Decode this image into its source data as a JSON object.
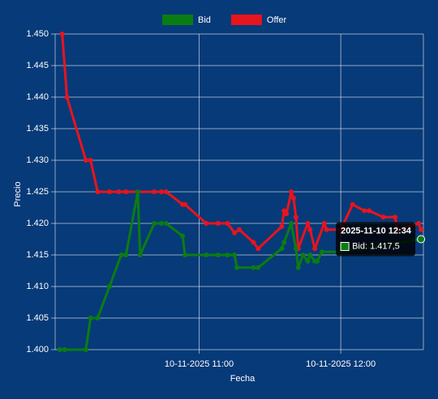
{
  "chart_data": {
    "type": "line",
    "x_label": "Fecha",
    "y_label": "Precio",
    "xlim": [
      "10-11-2025 09:59",
      "10-11-2025 12:35"
    ],
    "xticks": [
      "10-11-2025 11:00",
      "10-11-2025 12:00"
    ],
    "ylim": [
      1.4,
      1.45
    ],
    "yticks": [
      {
        "value": 1.4,
        "label": "1.400"
      },
      1.405,
      {
        "value": 1.41,
        "label": "1.410"
      },
      1.415,
      {
        "value": 1.42,
        "label": "1.420"
      },
      1.425,
      {
        "value": 1.43,
        "label": "1.430"
      },
      1.435,
      {
        "value": 1.44,
        "label": "1.440"
      },
      1.445,
      {
        "value": 1.45,
        "label": "1.450"
      }
    ],
    "grid": true,
    "legend": "top",
    "series": [
      {
        "name": "Bid",
        "color": "#0a7d12",
        "x": [
          "10-11-2025 10:01",
          "10-11-2025 10:03",
          "10-11-2025 10:12",
          "10-11-2025 10:14",
          "10-11-2025 10:17",
          "10-11-2025 10:22",
          "10-11-2025 10:27",
          "10-11-2025 10:29",
          "10-11-2025 10:34",
          "10-11-2025 10:35",
          "10-11-2025 10:41",
          "10-11-2025 10:44",
          "10-11-2025 10:46",
          "10-11-2025 10:53",
          "10-11-2025 10:54",
          "10-11-2025 11:03",
          "10-11-2025 11:08",
          "10-11-2025 11:12",
          "10-11-2025 11:15",
          "10-11-2025 11:16",
          "10-11-2025 11:23",
          "10-11-2025 11:25",
          "10-11-2025 11:35",
          "10-11-2025 11:36",
          "10-11-2025 11:39",
          "10-11-2025 11:41",
          "10-11-2025 11:42",
          "10-11-2025 11:44",
          "10-11-2025 11:46",
          "10-11-2025 11:47",
          "10-11-2025 11:49",
          "10-11-2025 11:50",
          "10-11-2025 11:52",
          "10-11-2025 12:00",
          "10-11-2025 12:34"
        ],
        "values": [
          1.4,
          1.4,
          1.4,
          1.405,
          1.405,
          1.41,
          1.415,
          1.415,
          1.425,
          1.415,
          1.42,
          1.42,
          1.42,
          1.418,
          1.415,
          1.415,
          1.415,
          1.415,
          1.415,
          1.413,
          1.413,
          1.413,
          1.416,
          1.417,
          1.42,
          1.416,
          1.413,
          1.415,
          1.414,
          1.415,
          1.414,
          1.414,
          1.4155,
          1.4155,
          1.4175
        ]
      },
      {
        "name": "Offer",
        "color": "#e8141e",
        "x": [
          "10-11-2025 10:02",
          "10-11-2025 10:04",
          "10-11-2025 10:12",
          "10-11-2025 10:14",
          "10-11-2025 10:17",
          "10-11-2025 10:22",
          "10-11-2025 10:26",
          "10-11-2025 10:29",
          "10-11-2025 10:34",
          "10-11-2025 10:41",
          "10-11-2025 10:44",
          "10-11-2025 10:46",
          "10-11-2025 10:53",
          "10-11-2025 10:54",
          "10-11-2025 11:03",
          "10-11-2025 11:08",
          "10-11-2025 11:12",
          "10-11-2025 11:15",
          "10-11-2025 11:17",
          "10-11-2025 11:23",
          "10-11-2025 11:25",
          "10-11-2025 11:35",
          "10-11-2025 11:36",
          "10-11-2025 11:37",
          "10-11-2025 11:39",
          "10-11-2025 11:40",
          "10-11-2025 11:41",
          "10-11-2025 11:42",
          "10-11-2025 11:46",
          "10-11-2025 11:47",
          "10-11-2025 11:49",
          "10-11-2025 11:53",
          "10-11-2025 11:54",
          "10-11-2025 12:00",
          "10-11-2025 12:05",
          "10-11-2025 12:10",
          "10-11-2025 12:12",
          "10-11-2025 12:18",
          "10-11-2025 12:23",
          "10-11-2025 12:24",
          "10-11-2025 12:33",
          "10-11-2025 12:34"
        ],
        "values": [
          1.45,
          1.44,
          1.43,
          1.43,
          1.425,
          1.425,
          1.425,
          1.425,
          1.425,
          1.425,
          1.425,
          1.425,
          1.423,
          1.423,
          1.42,
          1.42,
          1.42,
          1.4185,
          1.419,
          1.417,
          1.416,
          1.4195,
          1.422,
          1.4215,
          1.425,
          1.424,
          1.421,
          1.416,
          1.42,
          1.419,
          1.416,
          1.42,
          1.419,
          1.419,
          1.423,
          1.422,
          1.422,
          1.421,
          1.421,
          1.419,
          1.42,
          1.419
        ]
      }
    ],
    "tooltip": {
      "title": "2025-11-10 12:34",
      "label": "Bid: 1.417,5"
    }
  }
}
